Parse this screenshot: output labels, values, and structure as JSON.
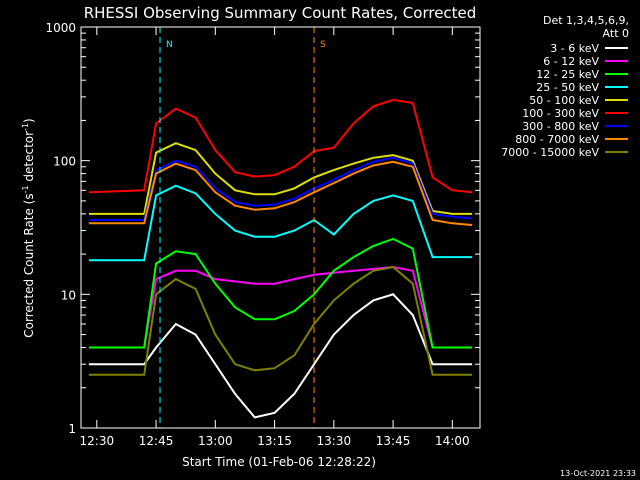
{
  "chart_data": {
    "type": "line",
    "title": "RHESSI Observing Summary Count Rates, Corrected",
    "xlabel": "Start Time (01-Feb-06 12:28:22)",
    "ylabel_main": "Corrected Count Rate (s",
    "ylabel_sup1": "-1",
    "ylabel_mid": " detector",
    "ylabel_sup2": "-1",
    "ylabel_end": ")",
    "yscale": "log",
    "ylim": [
      1,
      1000
    ],
    "xlim": [
      "12:26:00",
      "14:07:00"
    ],
    "y_ticks": [
      "1",
      "10",
      "100",
      "1000"
    ],
    "x_ticks": [
      "12:30",
      "12:45",
      "13:00",
      "13:15",
      "13:30",
      "13:45",
      "14:00"
    ],
    "legend_title_1": "Det 1,3,4,5,6,9,",
    "legend_title_2": "Att 0",
    "legend_placement": "right",
    "timestamp": "13-Oct-2021 23:33",
    "annotations": [
      {
        "label": "N",
        "color": "#00ffff",
        "time": "12:46:00"
      },
      {
        "label": "S",
        "color": "#ff8800",
        "time": "13:25:00"
      }
    ],
    "series": [
      {
        "name": "3 - 6 keV",
        "color": "#ffffff",
        "x": [
          "12:28",
          "12:42",
          "12:45",
          "12:50",
          "12:55",
          "13:00",
          "13:05",
          "13:10",
          "13:15",
          "13:20",
          "13:25",
          "13:30",
          "13:35",
          "13:40",
          "13:45",
          "13:50",
          "13:55",
          "14:00",
          "14:05"
        ],
        "y": [
          3,
          3,
          4,
          6,
          5,
          3,
          1.8,
          1.2,
          1.3,
          1.8,
          3,
          5,
          7,
          9,
          10,
          7,
          3,
          3,
          3
        ]
      },
      {
        "name": "6 - 12 keV",
        "color": "#ff00ff",
        "x": [
          "12:28",
          "12:42",
          "12:45",
          "12:50",
          "12:55",
          "13:00",
          "13:05",
          "13:10",
          "13:15",
          "13:20",
          "13:25",
          "13:30",
          "13:35",
          "13:40",
          "13:45",
          "13:50",
          "13:55",
          "14:00",
          "14:05"
        ],
        "y": [
          4,
          4,
          13,
          15,
          15,
          13,
          12.5,
          12,
          12,
          13,
          14,
          14.5,
          15,
          15.5,
          16,
          15,
          4,
          4,
          4
        ]
      },
      {
        "name": "12 - 25 keV",
        "color": "#00ff00",
        "x": [
          "12:28",
          "12:42",
          "12:45",
          "12:50",
          "12:55",
          "13:00",
          "13:05",
          "13:10",
          "13:15",
          "13:20",
          "13:25",
          "13:30",
          "13:35",
          "13:40",
          "13:45",
          "13:50",
          "13:55",
          "14:00",
          "14:05"
        ],
        "y": [
          4,
          4,
          17,
          21,
          20,
          12,
          8,
          6.5,
          6.5,
          7.5,
          10,
          15,
          19,
          23,
          26,
          22,
          4,
          4,
          4
        ]
      },
      {
        "name": "25 - 50 keV",
        "color": "#00ffff",
        "x": [
          "12:28",
          "12:42",
          "12:45",
          "12:50",
          "12:55",
          "13:00",
          "13:05",
          "13:10",
          "13:15",
          "13:20",
          "13:25",
          "13:30",
          "13:35",
          "13:40",
          "13:45",
          "13:50",
          "13:55",
          "14:00",
          "14:05"
        ],
        "y": [
          18,
          18,
          55,
          65,
          57,
          40,
          30,
          27,
          27,
          30,
          36,
          28,
          40,
          50,
          55,
          50,
          19,
          19,
          19
        ]
      },
      {
        "name": "50 - 100 keV",
        "color": "#e0e000",
        "x": [
          "12:28",
          "12:42",
          "12:45",
          "12:50",
          "12:55",
          "13:00",
          "13:05",
          "13:10",
          "13:15",
          "13:20",
          "13:25",
          "13:30",
          "13:35",
          "13:40",
          "13:45",
          "13:50",
          "13:55",
          "14:00",
          "14:05"
        ],
        "y": [
          40,
          40,
          115,
          135,
          120,
          80,
          60,
          56,
          56,
          62,
          75,
          85,
          95,
          105,
          110,
          100,
          42,
          40,
          40
        ]
      },
      {
        "name": "100 - 300 keV",
        "color": "#ff0000",
        "x": [
          "12:28",
          "12:42",
          "12:45",
          "12:50",
          "12:55",
          "13:00",
          "13:05",
          "13:10",
          "13:15",
          "13:20",
          "13:25",
          "13:30",
          "13:35",
          "13:40",
          "13:45",
          "13:50",
          "13:55",
          "14:00",
          "14:05"
        ],
        "y": [
          58,
          60,
          190,
          245,
          210,
          120,
          82,
          76,
          78,
          90,
          118,
          125,
          190,
          255,
          285,
          270,
          75,
          60,
          58
        ]
      },
      {
        "name": "300 - 800 keV",
        "color": "#0000ff",
        "x": [
          "12:28",
          "12:42",
          "12:45",
          "12:50",
          "12:55",
          "13:00",
          "13:05",
          "13:10",
          "13:15",
          "13:20",
          "13:25",
          "13:30",
          "13:35",
          "13:40",
          "13:45",
          "13:50",
          "13:55",
          "14:00",
          "14:05"
        ],
        "y": [
          36,
          36,
          85,
          100,
          90,
          62,
          49,
          46,
          47,
          52,
          62,
          72,
          85,
          98,
          105,
          95,
          40,
          38,
          37
        ]
      },
      {
        "name": "800 - 7000 keV",
        "color": "#ff8800",
        "x": [
          "12:28",
          "12:42",
          "12:45",
          "12:50",
          "12:55",
          "13:00",
          "13:05",
          "13:10",
          "13:15",
          "13:20",
          "13:25",
          "13:30",
          "13:35",
          "13:40",
          "13:45",
          "13:50",
          "13:55",
          "14:00",
          "14:05"
        ],
        "y": [
          34,
          34,
          80,
          95,
          85,
          58,
          46,
          43,
          44,
          49,
          58,
          68,
          80,
          92,
          98,
          90,
          36,
          34,
          33
        ]
      },
      {
        "name": "7000 - 15000 keV",
        "color": "#808000",
        "x": [
          "12:28",
          "12:42",
          "12:45",
          "12:50",
          "12:55",
          "13:00",
          "13:05",
          "13:10",
          "13:15",
          "13:20",
          "13:25",
          "13:30",
          "13:35",
          "13:40",
          "13:45",
          "13:50",
          "13:55",
          "14:00",
          "14:05"
        ],
        "y": [
          2.5,
          2.5,
          10,
          13,
          11,
          5,
          3,
          2.7,
          2.8,
          3.5,
          6,
          9,
          12,
          15,
          16,
          12,
          2.5,
          2.5,
          2.5
        ]
      }
    ]
  }
}
